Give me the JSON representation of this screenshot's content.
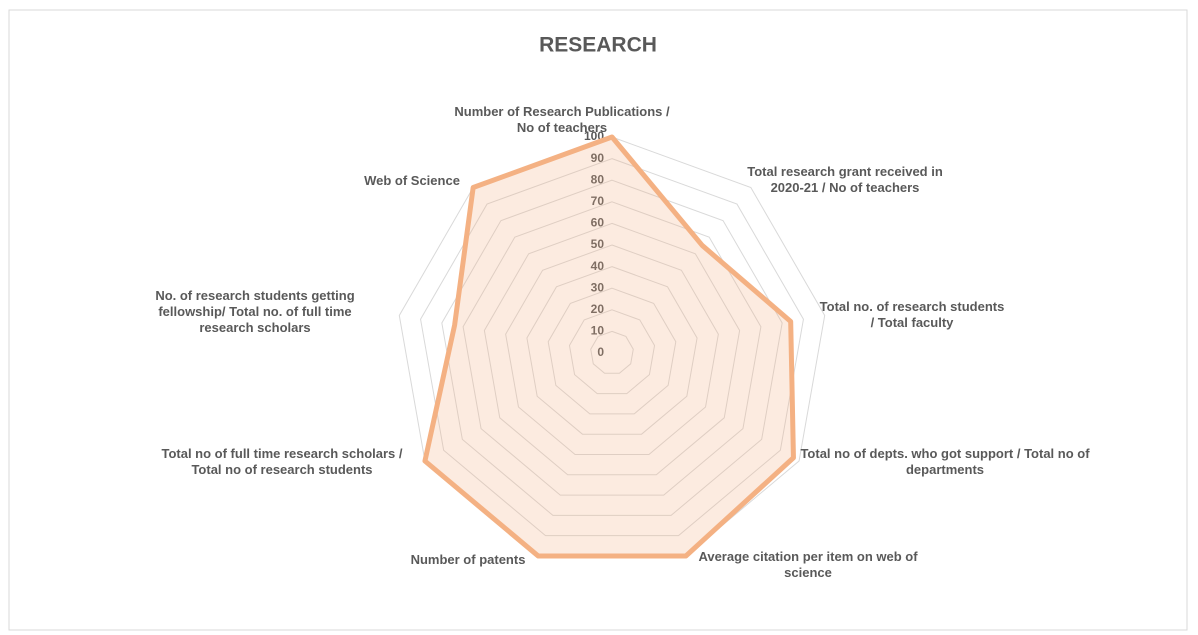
{
  "chart_data": {
    "type": "radar",
    "title": "RESEARCH",
    "categories": [
      "Number of Research Publications / No of teachers",
      "Total research grant received in 2020-21 / No of teachers",
      "Total no. of research students  / Total faculty",
      "Total no of depts. who got support / Total no of departments",
      "Average citation per item on web of science",
      "Number of patents",
      "Total no of full time research scholars  / Total no of research students",
      "No. of research students getting fellowship/ Total no. of full time research scholars",
      "Web of Science"
    ],
    "series": [
      {
        "color": "#f4b183",
        "values": [
          100,
          65,
          84,
          97,
          100,
          100,
          100,
          74,
          100
        ]
      }
    ],
    "ylim": [
      0,
      100
    ],
    "yticks": [
      0,
      10,
      20,
      30,
      40,
      50,
      60,
      70,
      80,
      90,
      100
    ],
    "grid": true
  }
}
